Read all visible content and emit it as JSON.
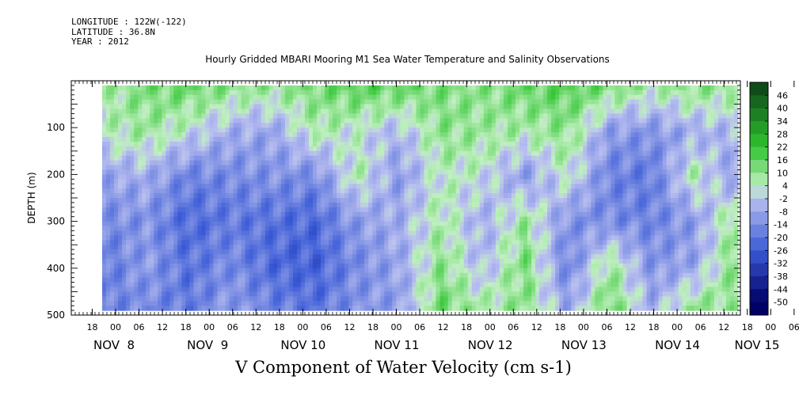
{
  "header": {
    "longitude_line": "LONGITUDE : 122W(-122)",
    "latitude_line": "LATITUDE : 36.8N",
    "year_line": "YEAR : 2012"
  },
  "title": "Hourly Gridded MBARI Mooring M1 Sea Water Temperature and Salinity Observations",
  "variable_title": "V Component of Water Velocity (cm s-1)",
  "colors": {
    "negative_dark": "#000066",
    "negative_mid": "#3b5bd6",
    "negative_light": "#b9bff0",
    "positive_light": "#bff0bf",
    "positive_mid": "#2ec42e",
    "positive_dark": "#0b3d17"
  },
  "chart_data": {
    "type": "heatmap",
    "title": "Hourly Gridded MBARI Mooring M1 Sea Water Temperature and Salinity Observations",
    "subtitle": "V Component of Water Velocity (cm s-1)",
    "xlabel": "",
    "ylabel": "DEPTH (m)",
    "ylim": [
      500,
      0
    ],
    "y_inverted": true,
    "y_ticks": [
      100,
      200,
      300,
      400,
      500
    ],
    "x_hour_ticks": [
      "18",
      "00",
      "06",
      "12",
      "18",
      "00",
      "06",
      "12",
      "18",
      "00",
      "06",
      "12",
      "18",
      "00",
      "06",
      "12",
      "18",
      "00",
      "06",
      "12",
      "18",
      "00",
      "06",
      "12",
      "18",
      "00",
      "06",
      "12",
      "18",
      "00",
      "06",
      "12"
    ],
    "x_date_labels": [
      "NOV  8",
      "NOV  9",
      "NOV 10",
      "NOV 11",
      "NOV 12",
      "NOV 13",
      "NOV 14",
      "NOV 15"
    ],
    "data_depth_range": [
      10,
      490
    ],
    "colorbar": {
      "levels": [
        46,
        40,
        34,
        28,
        22,
        16,
        10,
        4,
        -2,
        -8,
        -14,
        -20,
        -26,
        -32,
        -38,
        -44,
        -50
      ],
      "range": [
        -50,
        52
      ]
    },
    "columns": [
      {
        "time": "NOV 8 00:00",
        "profile": [
          6,
          4,
          -8,
          -14,
          -18,
          -16
        ]
      },
      {
        "time": "NOV 8 12:00",
        "profile": [
          12,
          8,
          -6,
          -12,
          -10,
          -14
        ]
      },
      {
        "time": "NOV 9 00:00",
        "profile": [
          14,
          2,
          -16,
          -22,
          -20,
          -18
        ]
      },
      {
        "time": "NOV 9 12:00",
        "profile": [
          10,
          -6,
          -14,
          -18,
          -14,
          -10
        ]
      },
      {
        "time": "NOV 10 00:00",
        "profile": [
          8,
          -8,
          -12,
          -20,
          -22,
          -16
        ]
      },
      {
        "time": "NOV 10 12:00",
        "profile": [
          12,
          6,
          -14,
          -22,
          -24,
          -20
        ]
      },
      {
        "time": "NOV 11 00:00",
        "profile": [
          16,
          2,
          6,
          -10,
          -14,
          -12
        ]
      },
      {
        "time": "NOV 11 12:00",
        "profile": [
          14,
          -4,
          -10,
          -6,
          -8,
          -10
        ]
      },
      {
        "time": "NOV 12 00:00",
        "profile": [
          12,
          10,
          4,
          6,
          10,
          14
        ]
      },
      {
        "time": "NOV 12 12:00",
        "profile": [
          10,
          8,
          2,
          -6,
          -4,
          6
        ]
      },
      {
        "time": "NOV 13 00:00",
        "profile": [
          14,
          6,
          -10,
          8,
          12,
          10
        ]
      },
      {
        "time": "NOV 13 12:00",
        "profile": [
          16,
          10,
          4,
          -12,
          -16,
          -8
        ]
      },
      {
        "time": "NOV 14 00:00",
        "profile": [
          12,
          -10,
          -16,
          -14,
          8,
          14
        ]
      },
      {
        "time": "NOV 14 12:00",
        "profile": [
          6,
          -12,
          -18,
          -16,
          -12,
          -6
        ]
      },
      {
        "time": "NOV 15 00:00",
        "profile": [
          10,
          -6,
          6,
          -10,
          -8,
          10
        ]
      },
      {
        "time": "NOV 15 12:00",
        "profile": [
          8,
          -4,
          -10,
          10,
          12,
          8
        ]
      }
    ]
  }
}
